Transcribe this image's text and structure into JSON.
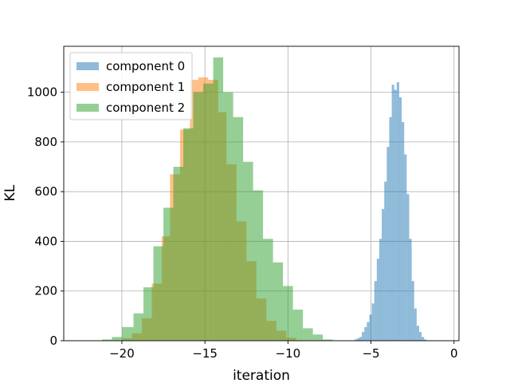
{
  "chart_data": {
    "type": "bar",
    "xlabel": "iteration",
    "ylabel": "KL",
    "xlim": [
      -23.5,
      0.3
    ],
    "ylim": [
      0,
      1185
    ],
    "grid": true,
    "legend_position": "top-left",
    "x_ticks": [
      -20,
      -15,
      -10,
      -5,
      0
    ],
    "x_tick_labels": [
      "−20",
      "−15",
      "−10",
      "−5",
      "0"
    ],
    "y_ticks": [
      0,
      200,
      400,
      600,
      800,
      1000
    ],
    "y_tick_labels": [
      "0",
      "200",
      "400",
      "600",
      "800",
      "1000"
    ],
    "series": [
      {
        "name": "component 0",
        "color": "#1f77b4",
        "opacity": 0.5,
        "bins": [
          [
            -6.0,
            -5.85,
            5
          ],
          [
            -5.85,
            -5.7,
            10
          ],
          [
            -5.7,
            -5.55,
            15
          ],
          [
            -5.55,
            -5.4,
            35
          ],
          [
            -5.4,
            -5.25,
            55
          ],
          [
            -5.25,
            -5.1,
            75
          ],
          [
            -5.1,
            -4.95,
            105
          ],
          [
            -4.95,
            -4.8,
            150
          ],
          [
            -4.8,
            -4.65,
            240
          ],
          [
            -4.65,
            -4.5,
            330
          ],
          [
            -4.5,
            -4.35,
            410
          ],
          [
            -4.35,
            -4.2,
            530
          ],
          [
            -4.2,
            -4.05,
            640
          ],
          [
            -4.05,
            -3.9,
            780
          ],
          [
            -3.9,
            -3.75,
            900
          ],
          [
            -3.75,
            -3.6,
            1030
          ],
          [
            -3.6,
            -3.45,
            1010
          ],
          [
            -3.45,
            -3.3,
            1040
          ],
          [
            -3.3,
            -3.15,
            980
          ],
          [
            -3.15,
            -3.0,
            880
          ],
          [
            -3.0,
            -2.85,
            750
          ],
          [
            -2.85,
            -2.7,
            590
          ],
          [
            -2.7,
            -2.55,
            410
          ],
          [
            -2.55,
            -2.4,
            240
          ],
          [
            -2.4,
            -2.25,
            130
          ],
          [
            -2.25,
            -2.1,
            60
          ],
          [
            -2.1,
            -1.95,
            35
          ],
          [
            -1.95,
            -1.8,
            15
          ],
          [
            -1.8,
            -1.65,
            5
          ]
        ]
      },
      {
        "name": "component 1",
        "color": "#ff7f0e",
        "opacity": 0.5,
        "bins": [
          [
            -20.0,
            -19.4,
            10
          ],
          [
            -19.4,
            -18.8,
            30
          ],
          [
            -18.8,
            -18.2,
            90
          ],
          [
            -18.2,
            -17.6,
            230
          ],
          [
            -17.6,
            -17.1,
            420
          ],
          [
            -17.1,
            -16.5,
            670
          ],
          [
            -16.5,
            -15.9,
            850
          ],
          [
            -15.9,
            -15.4,
            1050
          ],
          [
            -15.4,
            -14.8,
            1060
          ],
          [
            -14.8,
            -14.2,
            1050
          ],
          [
            -14.2,
            -13.7,
            920
          ],
          [
            -13.7,
            -13.1,
            710
          ],
          [
            -13.1,
            -12.5,
            480
          ],
          [
            -12.5,
            -11.9,
            320
          ],
          [
            -11.9,
            -11.3,
            170
          ],
          [
            -11.3,
            -10.7,
            80
          ],
          [
            -10.7,
            -10.1,
            40
          ],
          [
            -10.1,
            -9.5,
            12
          ]
        ]
      },
      {
        "name": "component 2",
        "color": "#2ca02c",
        "opacity": 0.5,
        "bins": [
          [
            -21.2,
            -20.6,
            5
          ],
          [
            -20.6,
            -20.0,
            15
          ],
          [
            -20.0,
            -19.3,
            55
          ],
          [
            -19.3,
            -18.7,
            110
          ],
          [
            -18.7,
            -18.1,
            215
          ],
          [
            -18.1,
            -17.5,
            380
          ],
          [
            -17.5,
            -16.9,
            535
          ],
          [
            -16.9,
            -16.3,
            700
          ],
          [
            -16.3,
            -15.7,
            855
          ],
          [
            -15.7,
            -15.1,
            1000
          ],
          [
            -15.1,
            -14.5,
            1035
          ],
          [
            -14.5,
            -13.9,
            1140
          ],
          [
            -13.9,
            -13.3,
            1000
          ],
          [
            -13.3,
            -12.7,
            900
          ],
          [
            -12.7,
            -12.1,
            720
          ],
          [
            -12.1,
            -11.5,
            605
          ],
          [
            -11.5,
            -10.9,
            410
          ],
          [
            -10.9,
            -10.3,
            315
          ],
          [
            -10.3,
            -9.7,
            220
          ],
          [
            -9.7,
            -9.1,
            125
          ],
          [
            -9.1,
            -8.5,
            50
          ],
          [
            -8.5,
            -7.9,
            25
          ],
          [
            -7.9,
            -7.3,
            5
          ]
        ]
      }
    ]
  }
}
